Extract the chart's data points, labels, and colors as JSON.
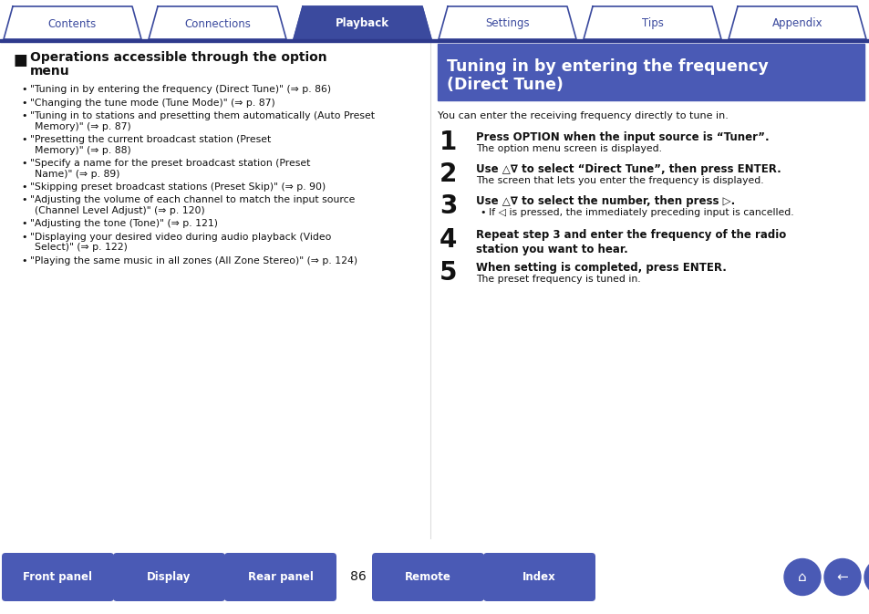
{
  "bg_color": "#ffffff",
  "tab_color_active": "#3b4a9e",
  "tab_color_inactive": "#ffffff",
  "tab_border_color": "#3b4a9e",
  "tab_text_active": "#ffffff",
  "tab_text_inactive": "#3b4a9e",
  "tabs": [
    "Contents",
    "Connections",
    "Playback",
    "Settings",
    "Tips",
    "Appendix"
  ],
  "active_tab": 2,
  "header_bg": "#4a5ab5",
  "header_text_line1": "Tuning in by entering the frequency",
  "header_text_line2": "(Direct Tune)",
  "header_text_color": "#ffffff",
  "section_title_line1": "Operations accessible through the option",
  "section_title_line2": "menu",
  "bullet_items": [
    [
      "“Tuning in by entering the frequency (Direct Tune)” (⇒ ",
      "p. 86",
      ")"
    ],
    [
      "“Changing the tune mode (Tune Mode)” (⇒ ",
      "p. 87",
      ")"
    ],
    [
      "“Tuning in to stations and presetting them automatically (Auto Preset\nMemory)” (⇒ ",
      "p. 87",
      ")"
    ],
    [
      "“Presetting the current broadcast station (Preset\nMemory)” (⇒ ",
      "p. 88",
      ")"
    ],
    [
      "“Specify a name for the preset broadcast station (Preset\nName)” (⇒ ",
      "p. 89",
      ")"
    ],
    [
      "“Skipping preset broadcast stations (Preset Skip)” (⇒ ",
      "p. 90",
      ")"
    ],
    [
      "“Adjusting the volume of each channel to match the input source\n(Channel Level Adjust)” (⇒ ",
      "p. 120",
      ")"
    ],
    [
      "“Adjusting the tone (Tone)” (⇒ ",
      "p. 121",
      ")"
    ],
    [
      "“Displaying your desired video during audio playback (Video\nSelect)” (⇒ ",
      "p. 122",
      ")"
    ],
    [
      "“Playing the same music in all zones (All Zone Stereo)” (⇒ ",
      "p. 124",
      ")"
    ]
  ],
  "intro_text": "You can enter the receiving frequency directly to tune in.",
  "steps": [
    {
      "num": "1",
      "bold": "Press OPTION when the input source is “Tuner”.",
      "bullet": false,
      "normal": "The option menu screen is displayed."
    },
    {
      "num": "2",
      "bold": "Use △∇ to select “Direct Tune”, then press ENTER.",
      "bullet": false,
      "normal": "The screen that lets you enter the frequency is displayed."
    },
    {
      "num": "3",
      "bold": "Use △∇ to select the number, then press ▷.",
      "bullet": true,
      "normal": "If ◁ is pressed, the immediately preceding input is cancelled."
    },
    {
      "num": "4",
      "bold": "Repeat step 3 and enter the frequency of the radio\nstation you want to hear.",
      "bullet": false,
      "normal": ""
    },
    {
      "num": "5",
      "bold": "When setting is completed, press ENTER.",
      "bullet": false,
      "normal": "The preset frequency is tuned in."
    }
  ],
  "page_number": "86",
  "button_color": "#4a5ab5",
  "blue_dark": "#2e3a8c",
  "blue_mid": "#4a5ab5",
  "footer_left_buttons": [
    "Front panel",
    "Display",
    "Rear panel"
  ],
  "footer_right_buttons": [
    "Remote",
    "Index"
  ]
}
